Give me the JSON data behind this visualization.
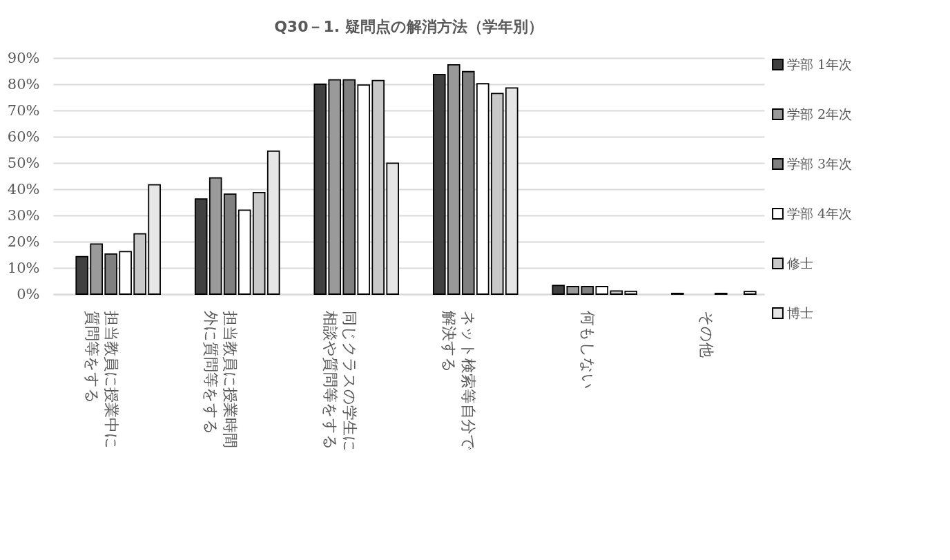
{
  "chart_data": {
    "type": "bar",
    "title": "Q30－1. 疑問点の解消方法（学年別）",
    "categories": [
      "担当教員に授業中に質問等をする",
      "担当教員に授業時間外に質問等をする",
      "同じクラスの学生に相談や質問等をする",
      "ネット検索等自分で解決する",
      "何もしない",
      "その他"
    ],
    "series": [
      {
        "name": "学部 1年次",
        "color": "#404040",
        "values": [
          14.3,
          36.3,
          80.0,
          83.7,
          3.3,
          0.3
        ]
      },
      {
        "name": "学部 2年次",
        "color": "#9a9a9a",
        "values": [
          19.1,
          44.3,
          81.7,
          87.4,
          2.9,
          null
        ]
      },
      {
        "name": "学部 3年次",
        "color": "#808080",
        "values": [
          15.3,
          38.1,
          81.7,
          84.8,
          2.9,
          null
        ]
      },
      {
        "name": "学部 4年次",
        "color": "#ffffff",
        "values": [
          16.2,
          32.0,
          79.7,
          80.2,
          2.9,
          0.3
        ]
      },
      {
        "name": "修士",
        "color": "#c8c8c8",
        "values": [
          23.0,
          38.7,
          81.4,
          76.5,
          1.2,
          null
        ]
      },
      {
        "name": "博士",
        "color": "#e6e6e6",
        "values": [
          41.7,
          54.5,
          49.9,
          78.6,
          1.1,
          1.0
        ]
      }
    ],
    "ylim": [
      0,
      90
    ],
    "yticks": [
      {
        "value": 0,
        "label": "0%"
      },
      {
        "value": 10,
        "label": "10%"
      },
      {
        "value": 20,
        "label": "20%"
      },
      {
        "value": 30,
        "label": "30%"
      },
      {
        "value": 40,
        "label": "40%"
      },
      {
        "value": 50,
        "label": "50%"
      },
      {
        "value": 60,
        "label": "60%"
      },
      {
        "value": 70,
        "label": "70%"
      },
      {
        "value": 80,
        "label": "80%"
      },
      {
        "value": 90,
        "label": "90%"
      }
    ],
    "grid": "y",
    "legend": "right"
  }
}
